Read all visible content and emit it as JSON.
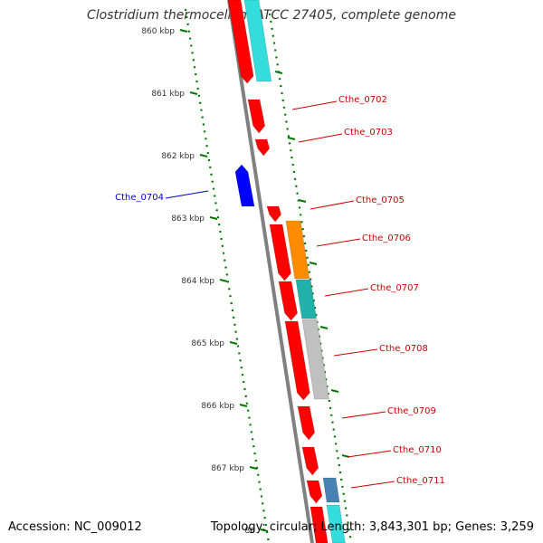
{
  "title": "Clostridium thermocellum ATCC 27405, complete genome",
  "footer": {
    "accession": "Accession: NC_009012",
    "topology": "Topology: circular; Length: 3,843,301 bp; Genes: 3,259"
  },
  "scale": {
    "ticks": [
      "860 kbp",
      "861 kbp",
      "862 kbp",
      "863 kbp",
      "864 kbp",
      "865 kbp",
      "866 kbp",
      "867 kbp",
      "86"
    ]
  },
  "labels": [
    {
      "name": "Cthe_0702",
      "strand": "forward",
      "color": "#cc0000"
    },
    {
      "name": "Cthe_0703",
      "strand": "forward",
      "color": "#cc0000"
    },
    {
      "name": "Cthe_0704",
      "strand": "reverse",
      "color": "#0000cc"
    },
    {
      "name": "Cthe_0705",
      "strand": "forward",
      "color": "#cc0000"
    },
    {
      "name": "Cthe_0706",
      "strand": "forward",
      "color": "#cc0000"
    },
    {
      "name": "Cthe_0707",
      "strand": "forward",
      "color": "#cc0000"
    },
    {
      "name": "Cthe_0708",
      "strand": "forward",
      "color": "#cc0000"
    },
    {
      "name": "Cthe_0709",
      "strand": "forward",
      "color": "#cc0000"
    },
    {
      "name": "Cthe_0710",
      "strand": "forward",
      "color": "#cc0000"
    },
    {
      "name": "Cthe_0711",
      "strand": "forward",
      "color": "#cc0000"
    }
  ],
  "colors": {
    "cds_forward": "#ff0000",
    "cds_reverse": "#0000ff",
    "backbone": "#808080",
    "tick": "#007700",
    "feature_cyan": "#33dddd",
    "feature_orange": "#ff8c00",
    "feature_teal": "#20b2aa",
    "feature_grey": "#c0c0c0",
    "feature_steelblue": "#4682b4"
  }
}
